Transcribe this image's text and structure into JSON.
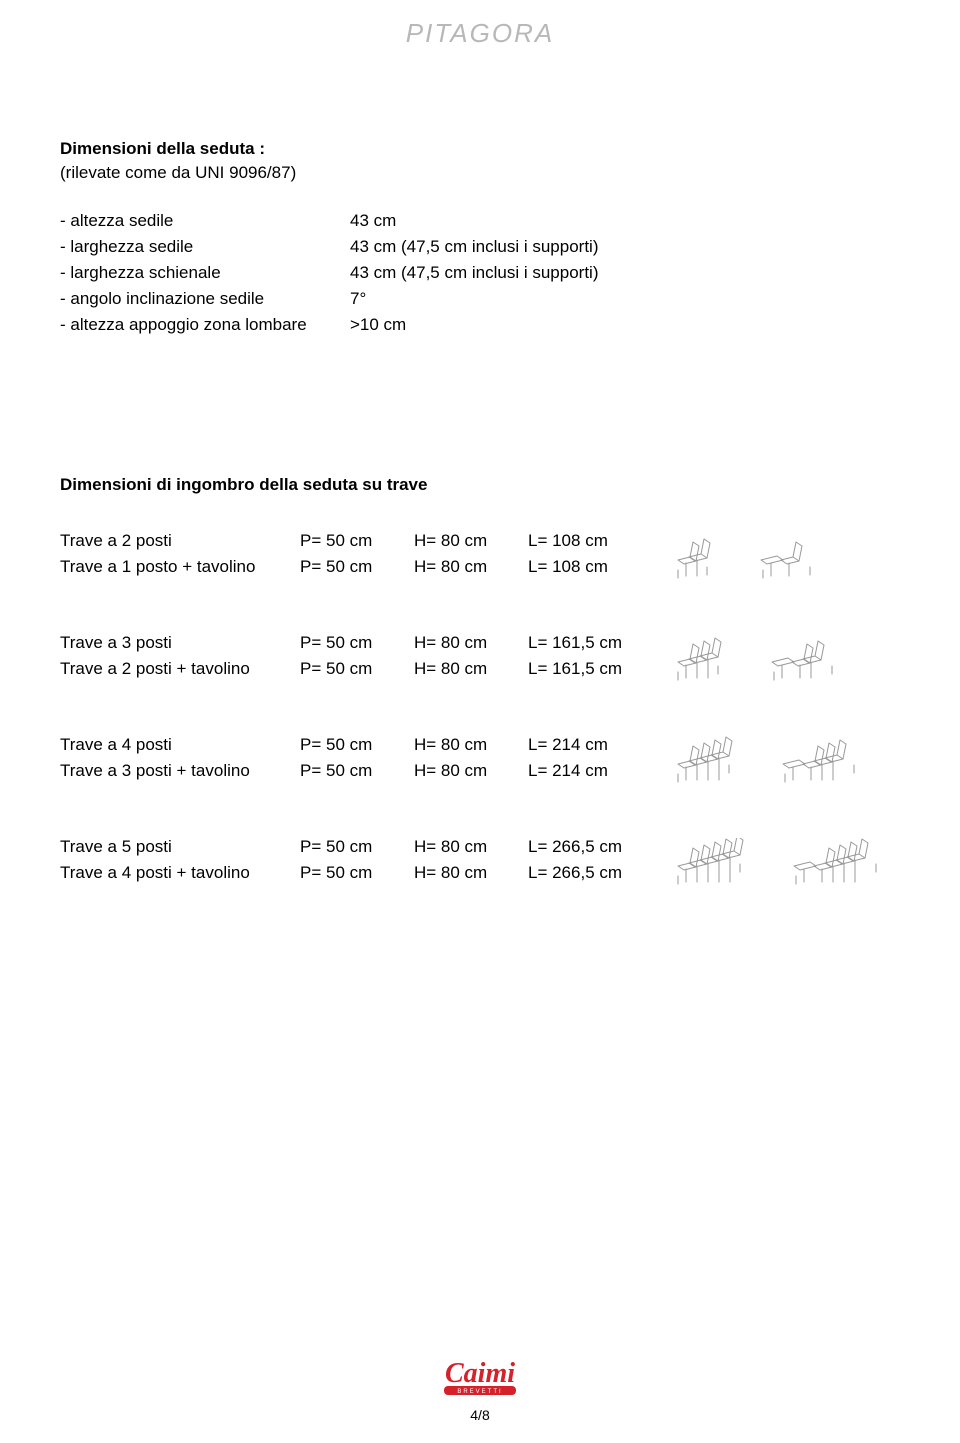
{
  "header": {
    "title": "PITAGORA"
  },
  "section1": {
    "title": "Dimensioni della seduta :",
    "subtitle": "(rilevate come da UNI 9096/87)",
    "specs": [
      {
        "label": "- altezza sedile",
        "value": "43 cm"
      },
      {
        "label": "- larghezza sedile",
        "value": "43 cm (47,5 cm inclusi i supporti)"
      },
      {
        "label": "- larghezza schienale",
        "value": "43 cm (47,5 cm inclusi i supporti)"
      },
      {
        "label": "- angolo inclinazione sedile",
        "value": "7°"
      },
      {
        "label": "- altezza appoggio zona lombare",
        "value": ">10 cm"
      }
    ]
  },
  "section2": {
    "title": "Dimensioni di ingombro della seduta su trave",
    "groups": [
      {
        "seats_a": 2,
        "seats_b": 1,
        "rows": [
          {
            "name": "Trave a 2 posti",
            "p": "P= 50 cm",
            "h": "H= 80 cm",
            "l": "L= 108 cm"
          },
          {
            "name": "Trave a 1 posto + tavolino",
            "p": "P= 50 cm",
            "h": "H= 80 cm",
            "l": "L= 108 cm"
          }
        ]
      },
      {
        "seats_a": 3,
        "seats_b": 2,
        "rows": [
          {
            "name": "Trave a 3 posti",
            "p": "P= 50 cm",
            "h": "H= 80 cm",
            "l": "L= 161,5 cm"
          },
          {
            "name": "Trave a 2 posti + tavolino",
            "p": "P= 50 cm",
            "h": "H= 80 cm",
            "l": "L= 161,5 cm"
          }
        ]
      },
      {
        "seats_a": 4,
        "seats_b": 3,
        "rows": [
          {
            "name": "Trave a 4 posti",
            "p": "P= 50 cm",
            "h": "H= 80 cm",
            "l": "L= 214 cm"
          },
          {
            "name": "Trave a 3 posti + tavolino",
            "p": "P= 50 cm",
            "h": "H= 80 cm",
            "l": "L= 214 cm"
          }
        ]
      },
      {
        "seats_a": 5,
        "seats_b": 4,
        "rows": [
          {
            "name": "Trave a 5 posti",
            "p": "P= 50 cm",
            "h": "H= 80 cm",
            "l": "L= 266,5 cm"
          },
          {
            "name": "Trave a 4 posti + tavolino",
            "p": "P= 50 cm",
            "h": "H= 80 cm",
            "l": "L= 266,5 cm"
          }
        ]
      }
    ]
  },
  "footer": {
    "logo_text": "Caimi",
    "logo_sub": "BREVETTI",
    "page": "4/8",
    "logo_color": "#d4212a"
  },
  "style": {
    "stroke": "#999999",
    "stroke_width": 1
  }
}
